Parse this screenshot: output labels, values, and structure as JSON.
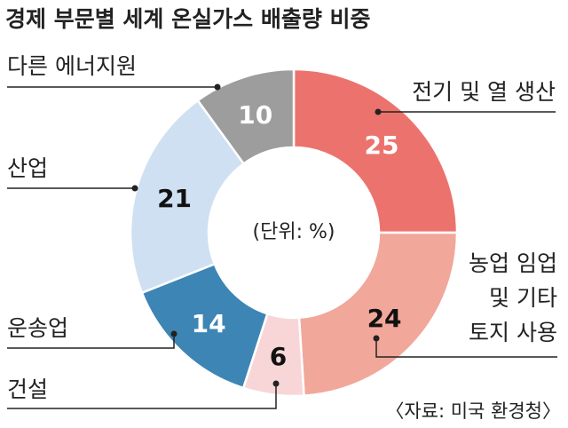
{
  "chart_data": {
    "type": "pie",
    "title": "경제 부문별 세계 온실가스 배출량 비중",
    "center_label": "(단위: %)",
    "source": "〈자료: 미국 환경청〉",
    "slices": [
      {
        "label": "전기 및 열 생산",
        "label_lines": [
          "전기 및 열 생산"
        ],
        "value": 25,
        "color": "#ec736d",
        "value_color": "#ffffff"
      },
      {
        "label": "농업 임업 및 기타 토지 사용",
        "label_lines": [
          "농업 임업",
          "및 기타",
          "토지 사용"
        ],
        "value": 24,
        "color": "#f2a79b",
        "value_color": "#111111"
      },
      {
        "label": "건설",
        "label_lines": [
          "건설"
        ],
        "value": 6,
        "color": "#f8d6d8",
        "value_color": "#111111"
      },
      {
        "label": "운송업",
        "label_lines": [
          "운송업"
        ],
        "value": 14,
        "color": "#3d85b5",
        "value_color": "#ffffff"
      },
      {
        "label": "산업",
        "label_lines": [
          "산업"
        ],
        "value": 21,
        "color": "#cfe0f3",
        "value_color": "#111111"
      },
      {
        "label": "다른 에너지원",
        "label_lines": [
          "다른 에너지원"
        ],
        "value": 10,
        "color": "#9d9d9d",
        "value_color": "#ffffff"
      }
    ]
  }
}
